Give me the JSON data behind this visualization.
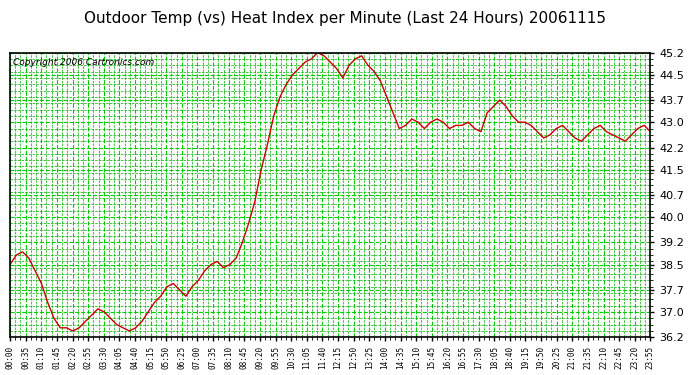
{
  "title": "Outdoor Temp (vs) Heat Index per Minute (Last 24 Hours) 20061115",
  "copyright": "Copyright 2006 Cartronics.com",
  "background_color": "#ffffff",
  "plot_bg_color": "#ffffff",
  "line_color": "#cc0000",
  "grid_color_major": "#00cc00",
  "grid_color_minor": "#00aa00",
  "yticks": [
    36.2,
    37.0,
    37.7,
    38.5,
    39.2,
    40.0,
    40.7,
    41.5,
    42.2,
    43.0,
    43.7,
    44.5,
    45.2
  ],
  "ymin": 36.2,
  "ymax": 45.2,
  "xtick_labels": [
    "00:00",
    "00:35",
    "01:10",
    "01:45",
    "02:20",
    "02:55",
    "03:30",
    "04:05",
    "04:40",
    "05:15",
    "05:50",
    "06:25",
    "07:00",
    "07:35",
    "08:10",
    "08:45",
    "09:20",
    "09:55",
    "10:30",
    "11:05",
    "11:40",
    "12:15",
    "12:50",
    "13:25",
    "14:00",
    "14:35",
    "15:10",
    "15:45",
    "16:20",
    "16:55",
    "17:30",
    "18:05",
    "18:40",
    "19:15",
    "19:50",
    "20:25",
    "21:00",
    "21:35",
    "22:10",
    "22:45",
    "23:20",
    "23:55"
  ],
  "data_y": [
    38.5,
    38.8,
    38.9,
    38.7,
    38.3,
    37.9,
    37.3,
    36.8,
    36.5,
    36.5,
    36.4,
    36.5,
    36.7,
    36.9,
    37.1,
    37.0,
    36.8,
    36.6,
    36.5,
    36.4,
    36.5,
    36.7,
    37.0,
    37.3,
    37.5,
    37.8,
    37.9,
    37.7,
    37.5,
    37.8,
    38.0,
    38.3,
    38.5,
    38.6,
    38.4,
    38.5,
    38.7,
    39.2,
    39.8,
    40.5,
    41.5,
    42.3,
    43.2,
    43.8,
    44.2,
    44.5,
    44.7,
    44.9,
    45.0,
    45.2,
    45.1,
    44.9,
    44.7,
    44.4,
    44.8,
    45.0,
    45.1,
    44.8,
    44.6,
    44.3,
    43.8,
    43.3,
    42.8,
    42.9,
    43.1,
    43.0,
    42.8,
    43.0,
    43.1,
    43.0,
    42.8,
    42.9,
    42.9,
    43.0,
    42.8,
    42.7,
    43.3,
    43.5,
    43.7,
    43.5,
    43.2,
    43.0,
    43.0,
    42.9,
    42.7,
    42.5,
    42.6,
    42.8,
    42.9,
    42.7,
    42.5,
    42.4,
    42.6,
    42.8,
    42.9,
    42.7,
    42.6,
    42.5,
    42.4,
    42.6,
    42.8,
    42.9,
    42.7
  ],
  "title_fontsize": 11,
  "copyright_fontsize": 6.5,
  "ytick_fontsize": 8,
  "xtick_fontsize": 5.5
}
